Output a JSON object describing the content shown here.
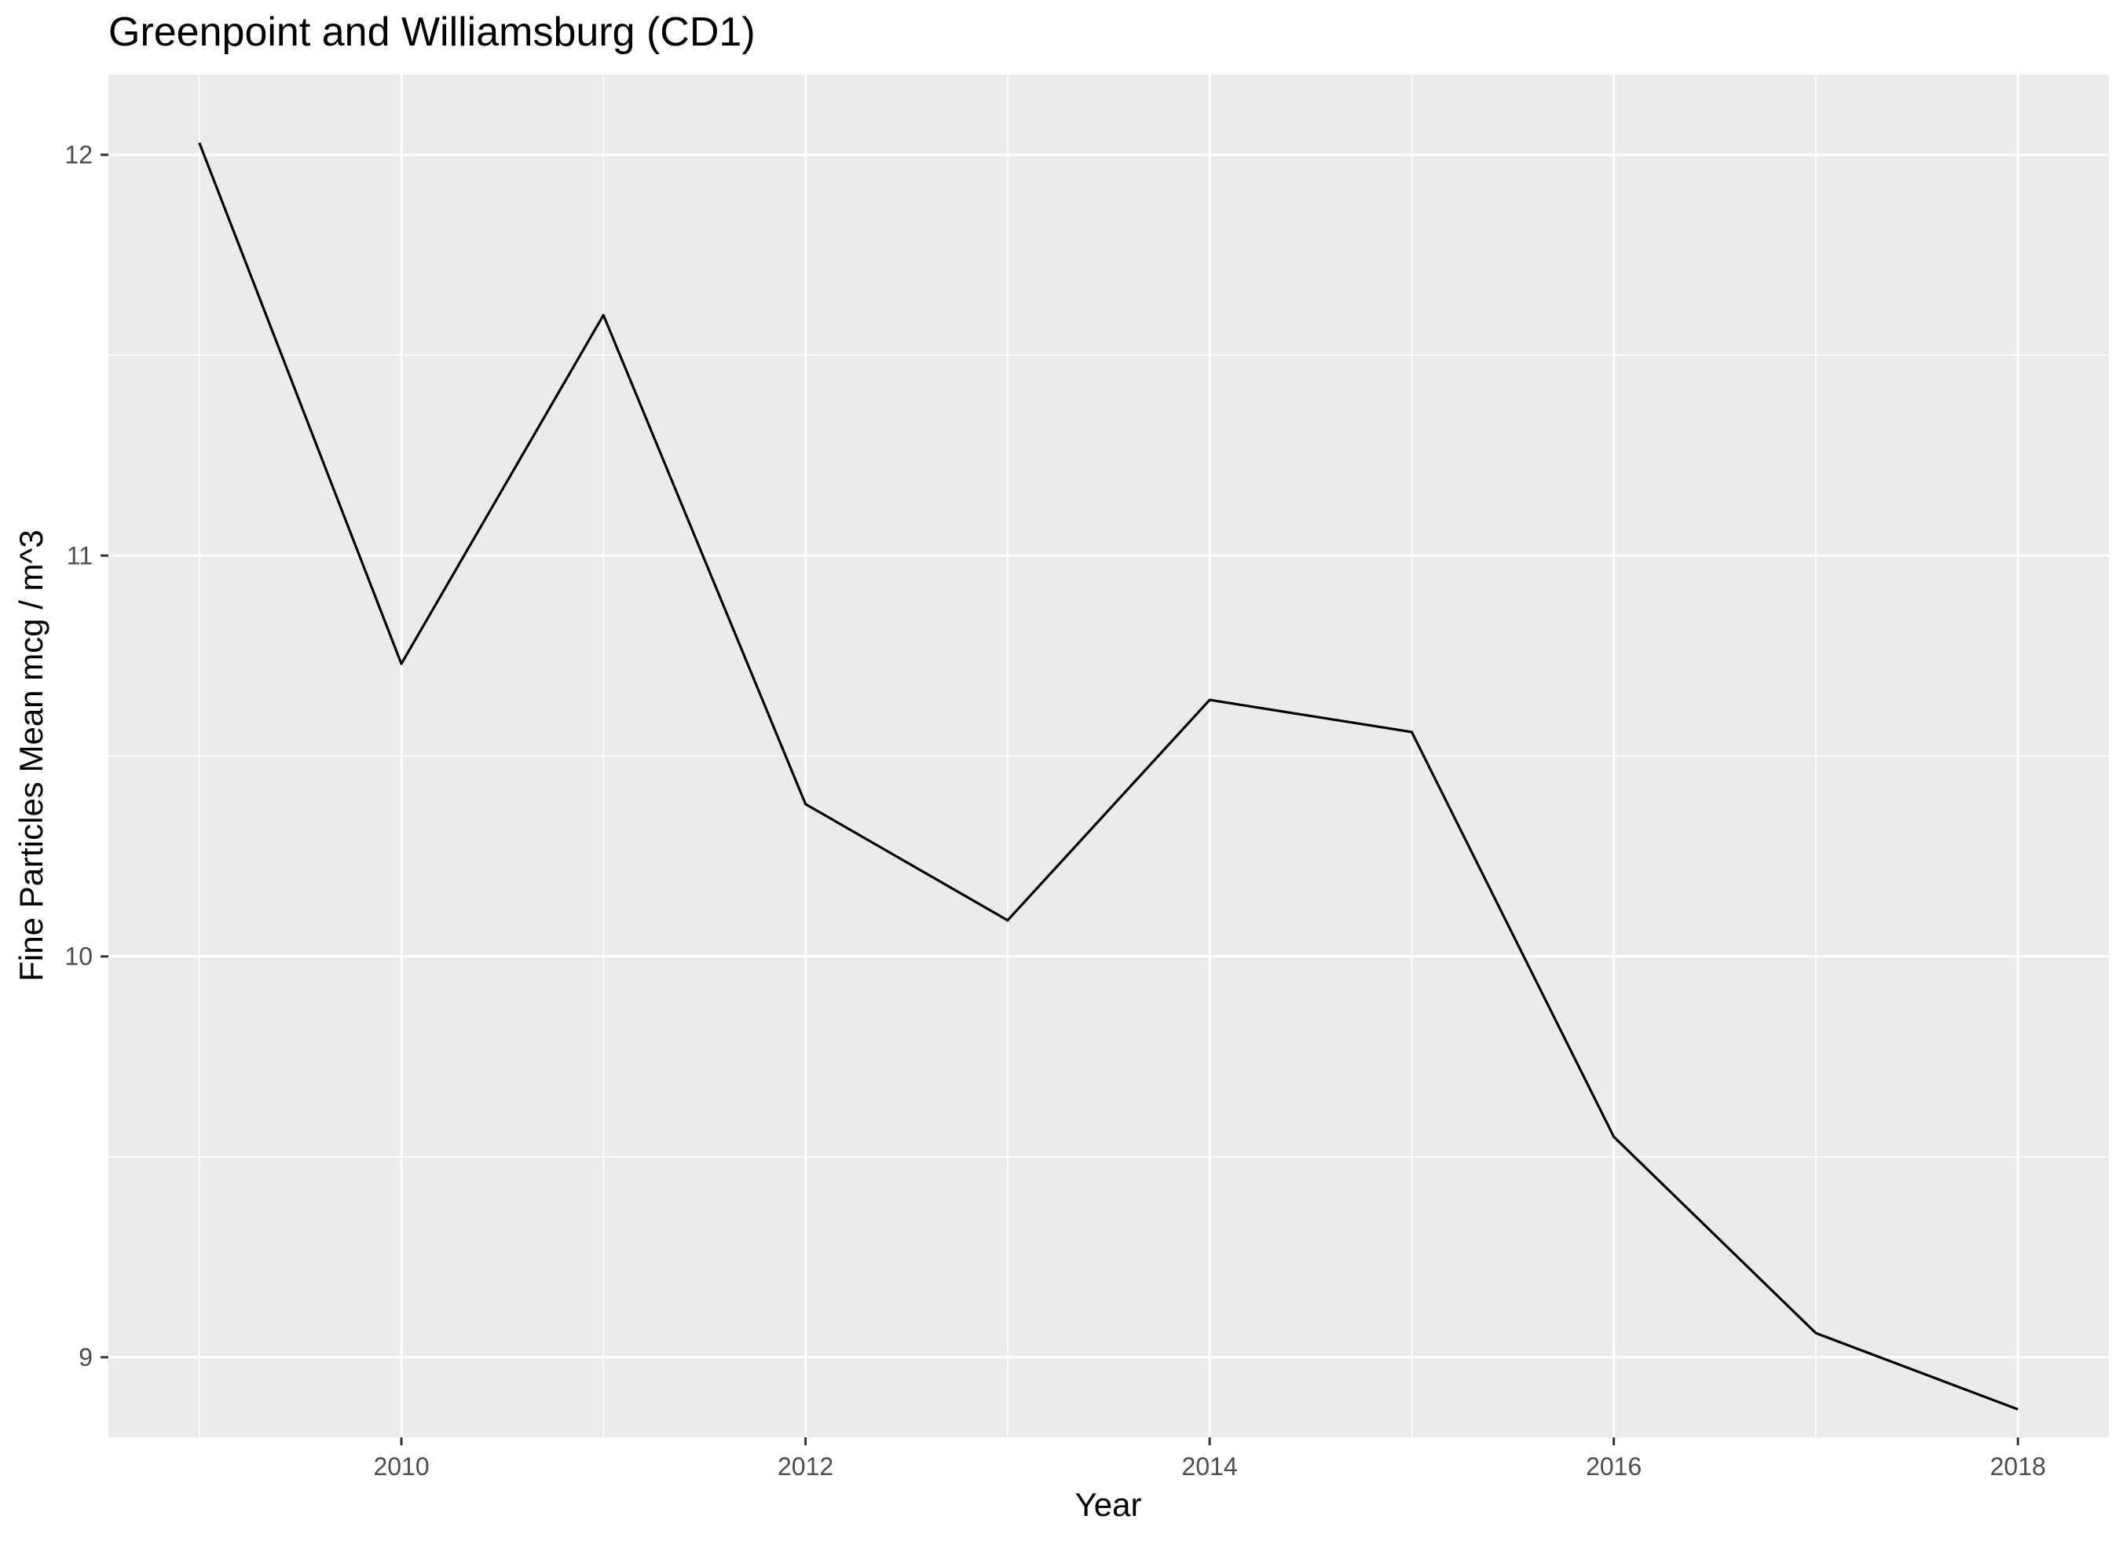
{
  "chart_data": {
    "type": "line",
    "title": "Greenpoint and Williamsburg (CD1)",
    "xlabel": "Year",
    "ylabel": "Fine Particles Mean mcg / m^3",
    "x": [
      2009,
      2010,
      2011,
      2012,
      2013,
      2014,
      2015,
      2016,
      2017,
      2018
    ],
    "series": [
      {
        "values": [
          12.03,
          10.73,
          11.6,
          10.38,
          10.09,
          10.64,
          10.56,
          9.55,
          9.06,
          8.87
        ]
      }
    ],
    "xlim": [
      2008.55,
      2018.45
    ],
    "ylim": [
      8.8,
      12.2
    ],
    "x_ticks": [
      2010,
      2012,
      2014,
      2016,
      2018
    ],
    "x_tick_labels": [
      "2010",
      "2012",
      "2014",
      "2016",
      "2018"
    ],
    "y_ticks": [
      9,
      10,
      11,
      12
    ],
    "y_tick_labels": [
      "9",
      "10",
      "11",
      "12"
    ],
    "x_minor_ticks": [
      2009,
      2011,
      2013,
      2015,
      2017
    ],
    "y_minor_ticks": [
      9.5,
      10.5,
      11.5
    ],
    "grid": true,
    "legend": "none",
    "colors": {
      "panel_background": "#ebebeb",
      "grid_major": "#ffffff",
      "grid_minor": "#ffffff",
      "line": "#000000",
      "tick_mark": "#333333",
      "tick_label": "#4d4d4d"
    }
  }
}
